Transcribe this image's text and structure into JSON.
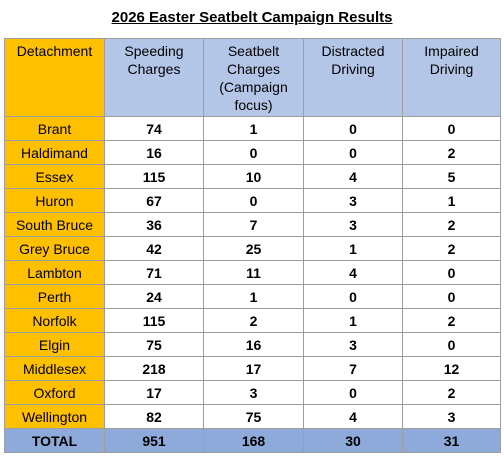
{
  "title": "2026 Easter Seatbelt Campaign Results",
  "headers": [
    "Detachment",
    "Speeding Charges",
    "Seatbelt Charges (Campaign focus)",
    "Distracted Driving",
    "Impaired Driving"
  ],
  "rows": [
    [
      "Brant",
      "74",
      "1",
      "0",
      "0"
    ],
    [
      "Haldimand",
      "16",
      "0",
      "0",
      "2"
    ],
    [
      "Essex",
      "115",
      "10",
      "4",
      "5"
    ],
    [
      "Huron",
      "67",
      "0",
      "3",
      "1"
    ],
    [
      "South Bruce",
      "36",
      "7",
      "3",
      "2"
    ],
    [
      "Grey Bruce",
      "42",
      "25",
      "1",
      "2"
    ],
    [
      "Lambton",
      "71",
      "11",
      "4",
      "0"
    ],
    [
      "Perth",
      "24",
      "1",
      "0",
      "0"
    ],
    [
      "Norfolk",
      "115",
      "2",
      "1",
      "2"
    ],
    [
      "Elgin",
      "75",
      "16",
      "3",
      "0"
    ],
    [
      "Middlesex",
      "218",
      "17",
      "7",
      "12"
    ],
    [
      "Oxford",
      "17",
      "3",
      "0",
      "2"
    ],
    [
      "Wellington",
      "82",
      "75",
      "4",
      "3"
    ]
  ],
  "total": [
    "TOTAL",
    "951",
    "168",
    "30",
    "31"
  ],
  "colors": {
    "detachment_fill": "#ffc000",
    "header_fill": "#b4c6e7",
    "total_fill": "#8eaadb"
  }
}
